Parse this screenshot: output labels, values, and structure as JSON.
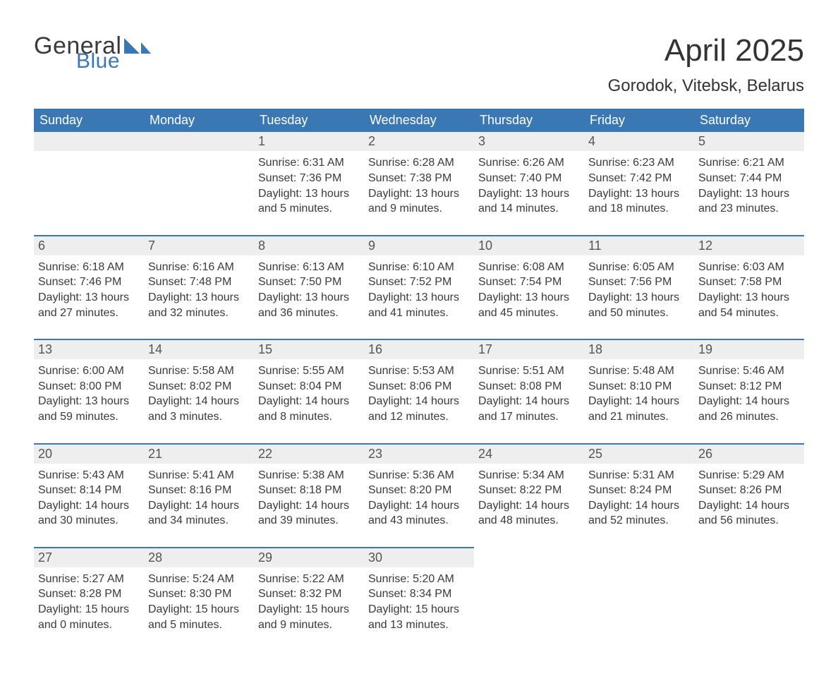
{
  "brand": {
    "text1": "General",
    "text2": "Blue",
    "text1_color": "#3a3a3a",
    "text2_color": "#3a78b5",
    "shape_color": "#3a78b5"
  },
  "header": {
    "title": "April 2025",
    "subtitle": "Gorodok, Vitebsk, Belarus"
  },
  "colors": {
    "header_bg": "#3a78b5",
    "header_text": "#ffffff",
    "daynum_bg": "#eeeeee",
    "daynum_text": "#555555",
    "divider": "#3a78b5",
    "body_text": "#3a3a3a",
    "page_bg": "#ffffff"
  },
  "fonts": {
    "title_size_pt": 33,
    "subtitle_size_pt": 18,
    "dayheader_size_pt": 14,
    "daynum_size_pt": 14,
    "cell_size_pt": 12,
    "family": "Segoe UI, Arial, Helvetica, sans-serif"
  },
  "day_headers": [
    "Sunday",
    "Monday",
    "Tuesday",
    "Wednesday",
    "Thursday",
    "Friday",
    "Saturday"
  ],
  "weeks": [
    [
      null,
      null,
      {
        "n": "1",
        "sunrise": "Sunrise: 6:31 AM",
        "sunset": "Sunset: 7:36 PM",
        "dl1": "Daylight: 13 hours",
        "dl2": "and 5 minutes."
      },
      {
        "n": "2",
        "sunrise": "Sunrise: 6:28 AM",
        "sunset": "Sunset: 7:38 PM",
        "dl1": "Daylight: 13 hours",
        "dl2": "and 9 minutes."
      },
      {
        "n": "3",
        "sunrise": "Sunrise: 6:26 AM",
        "sunset": "Sunset: 7:40 PM",
        "dl1": "Daylight: 13 hours",
        "dl2": "and 14 minutes."
      },
      {
        "n": "4",
        "sunrise": "Sunrise: 6:23 AM",
        "sunset": "Sunset: 7:42 PM",
        "dl1": "Daylight: 13 hours",
        "dl2": "and 18 minutes."
      },
      {
        "n": "5",
        "sunrise": "Sunrise: 6:21 AM",
        "sunset": "Sunset: 7:44 PM",
        "dl1": "Daylight: 13 hours",
        "dl2": "and 23 minutes."
      }
    ],
    [
      {
        "n": "6",
        "sunrise": "Sunrise: 6:18 AM",
        "sunset": "Sunset: 7:46 PM",
        "dl1": "Daylight: 13 hours",
        "dl2": "and 27 minutes."
      },
      {
        "n": "7",
        "sunrise": "Sunrise: 6:16 AM",
        "sunset": "Sunset: 7:48 PM",
        "dl1": "Daylight: 13 hours",
        "dl2": "and 32 minutes."
      },
      {
        "n": "8",
        "sunrise": "Sunrise: 6:13 AM",
        "sunset": "Sunset: 7:50 PM",
        "dl1": "Daylight: 13 hours",
        "dl2": "and 36 minutes."
      },
      {
        "n": "9",
        "sunrise": "Sunrise: 6:10 AM",
        "sunset": "Sunset: 7:52 PM",
        "dl1": "Daylight: 13 hours",
        "dl2": "and 41 minutes."
      },
      {
        "n": "10",
        "sunrise": "Sunrise: 6:08 AM",
        "sunset": "Sunset: 7:54 PM",
        "dl1": "Daylight: 13 hours",
        "dl2": "and 45 minutes."
      },
      {
        "n": "11",
        "sunrise": "Sunrise: 6:05 AM",
        "sunset": "Sunset: 7:56 PM",
        "dl1": "Daylight: 13 hours",
        "dl2": "and 50 minutes."
      },
      {
        "n": "12",
        "sunrise": "Sunrise: 6:03 AM",
        "sunset": "Sunset: 7:58 PM",
        "dl1": "Daylight: 13 hours",
        "dl2": "and 54 minutes."
      }
    ],
    [
      {
        "n": "13",
        "sunrise": "Sunrise: 6:00 AM",
        "sunset": "Sunset: 8:00 PM",
        "dl1": "Daylight: 13 hours",
        "dl2": "and 59 minutes."
      },
      {
        "n": "14",
        "sunrise": "Sunrise: 5:58 AM",
        "sunset": "Sunset: 8:02 PM",
        "dl1": "Daylight: 14 hours",
        "dl2": "and 3 minutes."
      },
      {
        "n": "15",
        "sunrise": "Sunrise: 5:55 AM",
        "sunset": "Sunset: 8:04 PM",
        "dl1": "Daylight: 14 hours",
        "dl2": "and 8 minutes."
      },
      {
        "n": "16",
        "sunrise": "Sunrise: 5:53 AM",
        "sunset": "Sunset: 8:06 PM",
        "dl1": "Daylight: 14 hours",
        "dl2": "and 12 minutes."
      },
      {
        "n": "17",
        "sunrise": "Sunrise: 5:51 AM",
        "sunset": "Sunset: 8:08 PM",
        "dl1": "Daylight: 14 hours",
        "dl2": "and 17 minutes."
      },
      {
        "n": "18",
        "sunrise": "Sunrise: 5:48 AM",
        "sunset": "Sunset: 8:10 PM",
        "dl1": "Daylight: 14 hours",
        "dl2": "and 21 minutes."
      },
      {
        "n": "19",
        "sunrise": "Sunrise: 5:46 AM",
        "sunset": "Sunset: 8:12 PM",
        "dl1": "Daylight: 14 hours",
        "dl2": "and 26 minutes."
      }
    ],
    [
      {
        "n": "20",
        "sunrise": "Sunrise: 5:43 AM",
        "sunset": "Sunset: 8:14 PM",
        "dl1": "Daylight: 14 hours",
        "dl2": "and 30 minutes."
      },
      {
        "n": "21",
        "sunrise": "Sunrise: 5:41 AM",
        "sunset": "Sunset: 8:16 PM",
        "dl1": "Daylight: 14 hours",
        "dl2": "and 34 minutes."
      },
      {
        "n": "22",
        "sunrise": "Sunrise: 5:38 AM",
        "sunset": "Sunset: 8:18 PM",
        "dl1": "Daylight: 14 hours",
        "dl2": "and 39 minutes."
      },
      {
        "n": "23",
        "sunrise": "Sunrise: 5:36 AM",
        "sunset": "Sunset: 8:20 PM",
        "dl1": "Daylight: 14 hours",
        "dl2": "and 43 minutes."
      },
      {
        "n": "24",
        "sunrise": "Sunrise: 5:34 AM",
        "sunset": "Sunset: 8:22 PM",
        "dl1": "Daylight: 14 hours",
        "dl2": "and 48 minutes."
      },
      {
        "n": "25",
        "sunrise": "Sunrise: 5:31 AM",
        "sunset": "Sunset: 8:24 PM",
        "dl1": "Daylight: 14 hours",
        "dl2": "and 52 minutes."
      },
      {
        "n": "26",
        "sunrise": "Sunrise: 5:29 AM",
        "sunset": "Sunset: 8:26 PM",
        "dl1": "Daylight: 14 hours",
        "dl2": "and 56 minutes."
      }
    ],
    [
      {
        "n": "27",
        "sunrise": "Sunrise: 5:27 AM",
        "sunset": "Sunset: 8:28 PM",
        "dl1": "Daylight: 15 hours",
        "dl2": "and 0 minutes."
      },
      {
        "n": "28",
        "sunrise": "Sunrise: 5:24 AM",
        "sunset": "Sunset: 8:30 PM",
        "dl1": "Daylight: 15 hours",
        "dl2": "and 5 minutes."
      },
      {
        "n": "29",
        "sunrise": "Sunrise: 5:22 AM",
        "sunset": "Sunset: 8:32 PM",
        "dl1": "Daylight: 15 hours",
        "dl2": "and 9 minutes."
      },
      {
        "n": "30",
        "sunrise": "Sunrise: 5:20 AM",
        "sunset": "Sunset: 8:34 PM",
        "dl1": "Daylight: 15 hours",
        "dl2": "and 13 minutes."
      },
      null,
      null,
      null
    ]
  ]
}
